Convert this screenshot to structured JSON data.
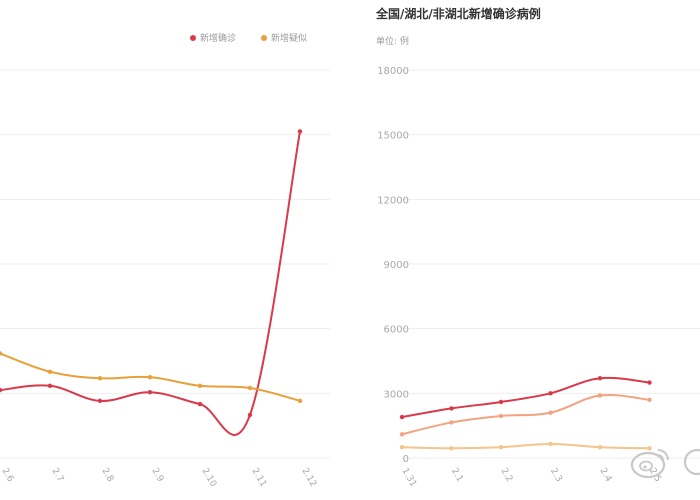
{
  "chart_data": [
    {
      "type": "line",
      "title": "",
      "legend_position": "top-right",
      "categories": [
        "2.6",
        "2.7",
        "2.8",
        "2.9",
        "2.10",
        "2.11",
        "2.12"
      ],
      "series": [
        {
          "name": "新增确诊",
          "color": "#d93a4a",
          "values": [
            3150,
            3350,
            2650,
            3050,
            2500,
            2000,
            15150
          ]
        },
        {
          "name": "新增疑似",
          "color": "#e8a13a",
          "values": [
            4850,
            4000,
            3700,
            3750,
            3350,
            3250,
            2650
          ]
        }
      ],
      "x_tick_labels_shown": [
        "2.6",
        "2.7",
        "2.8",
        "2.9",
        "2.10",
        "2.11",
        "2.12"
      ],
      "ylim": [
        0,
        18000
      ],
      "grid": true
    },
    {
      "type": "line",
      "title": "全国/湖北/非湖北新增确诊病例",
      "ylabel": "单位: 例",
      "categories": [
        "1.31",
        "2.1",
        "2.2",
        "2.3",
        "2.4",
        "2.5"
      ],
      "ylim": [
        0,
        18000
      ],
      "yticks": [
        "0",
        "3000",
        "6000",
        "9000",
        "12000",
        "15000",
        "18000"
      ],
      "grid": true,
      "series": [
        {
          "color": "#d93a4a",
          "values": [
            1900,
            2300,
            2600,
            3000,
            3700,
            3500
          ]
        },
        {
          "color": "#f2a37f",
          "values": [
            1100,
            1650,
            1950,
            2100,
            2900,
            2700
          ]
        },
        {
          "color": "#f5c48a",
          "values": [
            500,
            450,
            500,
            650,
            500,
            450
          ]
        }
      ]
    }
  ],
  "watermark": {
    "icon": "weibo-logo-icon",
    "color": "#c8c8c8"
  }
}
